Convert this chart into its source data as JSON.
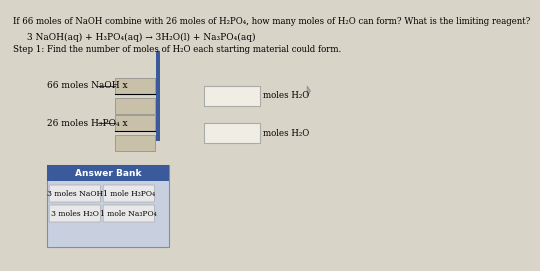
{
  "title": "If 66 moles of NaOH combine with 26 moles of H₂PO₄, how many moles of H₂O can form? What is the limiting reagent?",
  "equation": "3 NaOH(aq) + H₃PO₄(aq) → 3H₂O(l) + Na₃PO₄(aq)",
  "step1": "Step 1: Find the number of moles of H₂O each starting material could form.",
  "label1": "66 moles NaOH x",
  "label2": "26 moles H₃PO₄ x",
  "result_label1": "moles H₂O",
  "result_label2": "moles H₂O",
  "answer_bank_title": "Answer Bank",
  "btn1": "3 moles NaOH",
  "btn2": "1 mole H₃PO₄",
  "btn3": "3 moles H₂O",
  "btn4": "1 mole Na₃PO₄",
  "bg_color": "#d8d4c8",
  "answer_bank_header_color": "#3a5a9c",
  "answer_bank_bg_color": "#c8d0e0",
  "btn_bg_color": "#e8e8e8",
  "fraction_box_color": "#c8c0a8",
  "result_box_color": "#f0ede5",
  "vertical_bar_color": "#3a5a9c"
}
